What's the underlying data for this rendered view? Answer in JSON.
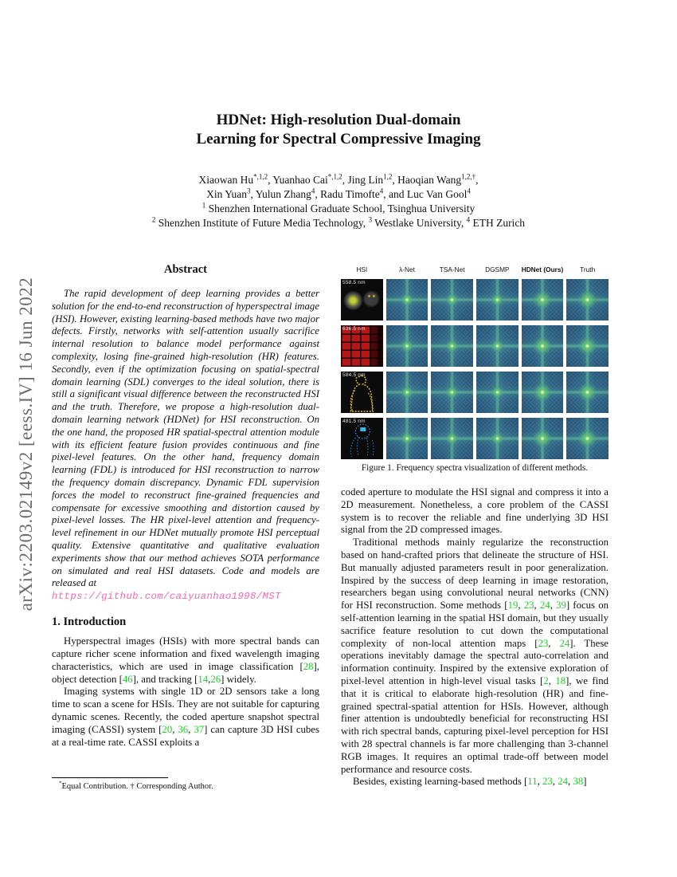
{
  "watermark": "arXiv:2203.02149v2 [eess.IV] 16 Jun 2022",
  "title": {
    "line1": "HDNet: High-resolution Dual-domain",
    "line2": "Learning for Spectral Compressive Imaging"
  },
  "authors": {
    "line1": "Xiaowan Hu^{*,1,2}, Yuanhao Cai^{*,1,2}, Jing Lin^{1,2}, Haoqian Wang^{1,2,†},",
    "line2": "Xin Yuan^{3}, Yulun Zhang^{4}, Radu Timofte^{4}, and Luc Van Gool^{4}",
    "affil1": "^{1} Shenzhen International Graduate School, Tsinghua University",
    "affil2": "^{2} Shenzhen Institute of Future Media Technology, ^{3} Westlake University, ^{4} ETH Zurich"
  },
  "abstract": {
    "heading": "Abstract",
    "text": "The rapid development of deep learning provides a better solution for the end-to-end reconstruction of hyperspectral image (HSI). However, existing learning-based methods have two major defects. Firstly, networks with self-attention usually sacrifice internal resolution to balance model performance against complexity, losing fine-grained high-resolution (HR) features. Secondly, even if the optimization focusing on spatial-spectral domain learning (SDL) converges to the ideal solution, there is still a significant visual difference between the reconstructed HSI and the truth. Therefore, we propose a high-resolution dual-domain learning network (HDNet) for HSI reconstruction. On the one hand, the proposed HR spatial-spectral attention module with its efficient feature fusion provides continuous and fine pixel-level features. On the other hand, frequency domain learning (FDL) is introduced for HSI reconstruction to narrow the frequency domain discrepancy. Dynamic FDL supervision forces the model to reconstruct fine-grained frequencies and compensate for excessive smoothing and distortion caused by pixel-level losses. The HR pixel-level attention and frequency-level refinement in our HDNet mutually promote HSI perceptual quality. Extensive quantitative and qualitative evaluation experiments show that our method achieves SOTA performance on simulated and real HSI datasets. Code and models are released at",
    "link": "https://github.com/caiyuanhao1998/MST"
  },
  "intro": {
    "heading": "1. Introduction",
    "p1": "Hyperspectral images (HSIs) with more spectral bands can capture richer scene information and fixed wavelength imaging characteristics, which are used in image classification [28], object detection [46], and tracking [14,26] widely.",
    "p2": "Imaging systems with single 1D or 2D sensors take a long time to scan a scene for HSIs. They are not suitable for capturing dynamic scenes. Recently, the coded aperture snapshot spectral imaging (CASSI) system [20, 36, 37] can capture 3D HSI cubes at a real-time rate. CASSI exploits a"
  },
  "rightcol": {
    "p1": "coded aperture to modulate the HSI signal and compress it into a 2D measurement. Nonetheless, a core problem of the CASSI system is to recover the reliable and fine underlying 3D HSI signal from the 2D compressed images.",
    "p2": "Traditional methods mainly regularize the reconstruction based on hand-crafted priors that delineate the structure of HSI. But manually adjusted parameters result in poor generalization. Inspired by the success of deep learning in image restoration, researchers began using convolutional neural networks (CNN) for HSI reconstruction. Some methods [19, 23, 24, 39] focus on self-attention learning in the spatial HSI domain, but they usually sacrifice feature resolution to cut down the computational complexity of non-local attention maps [23, 24]. These operations inevitably damage the spectral auto-correlation and information continuity. Inspired by the extensive exploration of pixel-level attention in high-level visual tasks [2, 18], we find that it is critical to elaborate high-resolution (HR) and fine-grained spectral-spatial attention for HSIs. However, although finer attention is undoubtedly beneficial for reconstructing HSI with rich spectral bands, capturing pixel-level perception for HSI with 28 spectral channels is far more challenging than 3-channel RGB images. It requires an optimal trade-off between model performance and resource costs.",
    "p3": "Besides, existing learning-based methods [11, 23, 24, 38]"
  },
  "footnote": "^{*}Equal Contribution. † Corresponding Author.",
  "figure": {
    "headers": [
      "HSI",
      "λ-Net",
      "TSA-Net",
      "DGSMP",
      "HDNet (Ours)",
      "Truth"
    ],
    "rows": [
      {
        "wavelength": "558.5 nm"
      },
      {
        "wavelength": "636.5 nm"
      },
      {
        "wavelength": "584.5 nm"
      },
      {
        "wavelength": "481.5 nm"
      }
    ],
    "caption": "Figure 1. Frequency spectra visualization of different methods."
  },
  "colors": {
    "citation": "#1fcf27",
    "link": "#ee6ab0"
  }
}
